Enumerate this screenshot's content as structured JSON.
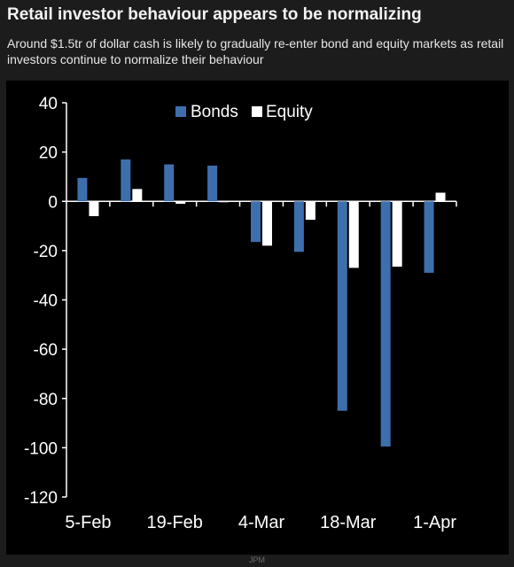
{
  "header": {
    "title": "Retail investor behaviour appears to be normalizing",
    "subtitle": "Around $1.5tr of dollar cash is likely to gradually re-enter bond and equity markets as retail investors continue to normalize their behaviour"
  },
  "footer": {
    "source": "JPM"
  },
  "colors": {
    "bonds": "#3d6fad",
    "equity": "#ffffff",
    "axis": "#ffffff",
    "panel": "#000000"
  },
  "chart_data": {
    "type": "bar",
    "title": "",
    "xlabel": "",
    "ylabel": "",
    "ylim": [
      -120,
      40
    ],
    "yticks": [
      40,
      20,
      0,
      -20,
      -40,
      -60,
      -80,
      -100,
      -120
    ],
    "x_tick_labels": [
      {
        "label": "5-Feb",
        "index": 0
      },
      {
        "label": "19-Feb",
        "index": 2
      },
      {
        "label": "4-Mar",
        "index": 4
      },
      {
        "label": "18-Mar",
        "index": 6
      },
      {
        "label": "1-Apr",
        "index": 8
      }
    ],
    "legend": {
      "placement": "top-center"
    },
    "grid": false,
    "num_periods": 9,
    "series": [
      {
        "name": "Bonds",
        "values": [
          9.5,
          17,
          15,
          14.5,
          -16.5,
          -20.5,
          -85,
          -99.5,
          -29
        ]
      },
      {
        "name": "Equity",
        "values": [
          -6,
          5,
          -1,
          0,
          -18,
          -7.5,
          -27,
          -26.5,
          3.5
        ]
      }
    ]
  }
}
